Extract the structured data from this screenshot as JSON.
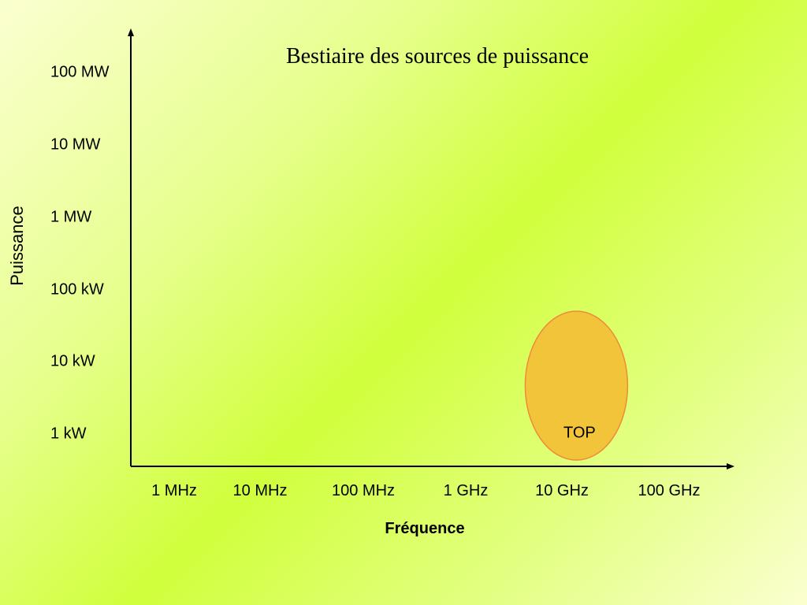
{
  "chart_data": {
    "type": "scatter",
    "title": "Bestiaire des sources de puissance",
    "xlabel": "Fréquence",
    "ylabel": "Puissance",
    "x_scale": "log",
    "y_scale": "log",
    "x_ticks": [
      "1 MHz",
      "10 MHz",
      "100 MHz",
      "1 GHz",
      "10 GHz",
      "100 GHz"
    ],
    "y_ticks": [
      "100 MW",
      "10 MW",
      "1 MW",
      "100 kW",
      "10 kW",
      "1 kW"
    ],
    "grid": false,
    "regions": [
      {
        "label": "TOP",
        "x_center_hz": 10000000000,
        "power_range_w": [
          1000,
          50000
        ],
        "color": "#f2c43a",
        "outline": "#f08a3c"
      }
    ]
  },
  "colors": {
    "axis": "#000000"
  }
}
